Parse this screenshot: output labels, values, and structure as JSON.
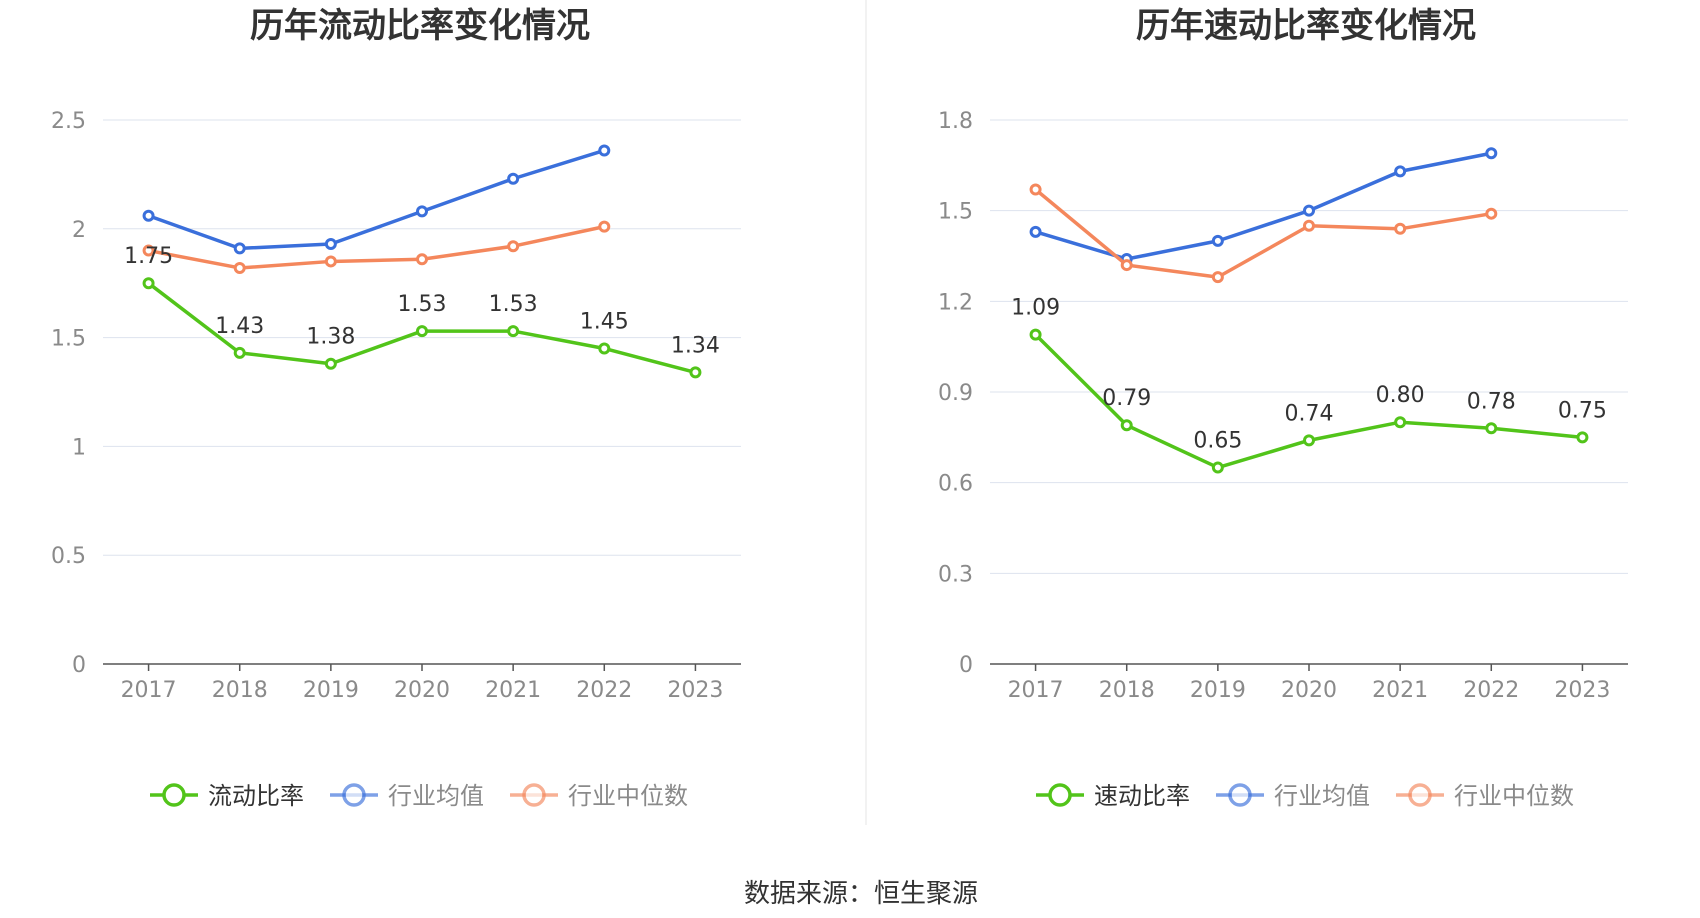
{
  "chart_data": [
    {
      "type": "line",
      "title": "历年流动比率变化情况",
      "categories": [
        "2017",
        "2018",
        "2019",
        "2020",
        "2021",
        "2022",
        "2023"
      ],
      "ylim": [
        0,
        2.5
      ],
      "yticks": [
        0,
        0.5,
        1,
        1.5,
        2,
        2.5
      ],
      "ytick_labels": [
        "0",
        "0.5",
        "1",
        "1.5",
        "2",
        "2.5"
      ],
      "grid": true,
      "legend_placement": "bottom",
      "series": [
        {
          "name": "流动比率",
          "color": "#52c41a",
          "values": [
            1.75,
            1.43,
            1.38,
            1.53,
            1.53,
            1.45,
            1.34
          ],
          "labels": [
            "1.75",
            "1.43",
            "1.38",
            "1.53",
            "1.53",
            "1.45",
            "1.34"
          ]
        },
        {
          "name": "行业均值",
          "color": "#3a6fdb",
          "values": [
            2.06,
            1.91,
            1.93,
            2.08,
            2.23,
            2.36,
            null
          ]
        },
        {
          "name": "行业中位数",
          "color": "#f4875c",
          "values": [
            1.9,
            1.82,
            1.85,
            1.86,
            1.92,
            2.01,
            null
          ]
        }
      ]
    },
    {
      "type": "line",
      "title": "历年速动比率变化情况",
      "categories": [
        "2017",
        "2018",
        "2019",
        "2020",
        "2021",
        "2022",
        "2023"
      ],
      "ylim": [
        0,
        1.8
      ],
      "yticks": [
        0,
        0.3,
        0.6,
        0.9,
        1.2,
        1.5,
        1.8
      ],
      "ytick_labels": [
        "0",
        "0.3",
        "0.6",
        "0.9",
        "1.2",
        "1.5",
        "1.8"
      ],
      "grid": true,
      "legend_placement": "bottom",
      "series": [
        {
          "name": "速动比率",
          "color": "#52c41a",
          "values": [
            1.09,
            0.79,
            0.65,
            0.74,
            0.8,
            0.78,
            0.75
          ],
          "labels": [
            "1.09",
            "0.79",
            "0.65",
            "0.74",
            "0.80",
            "0.78",
            "0.75"
          ]
        },
        {
          "name": "行业均值",
          "color": "#3a6fdb",
          "values": [
            1.43,
            1.34,
            1.4,
            1.5,
            1.63,
            1.69,
            null
          ]
        },
        {
          "name": "行业中位数",
          "color": "#f4875c",
          "values": [
            1.57,
            1.32,
            1.28,
            1.45,
            1.44,
            1.49,
            null
          ]
        }
      ]
    }
  ],
  "footer": {
    "source": "数据来源：恒生聚源"
  },
  "colors": {
    "grid": "#dde3ee",
    "axis": "#555555",
    "divider": "#eeeeee"
  }
}
